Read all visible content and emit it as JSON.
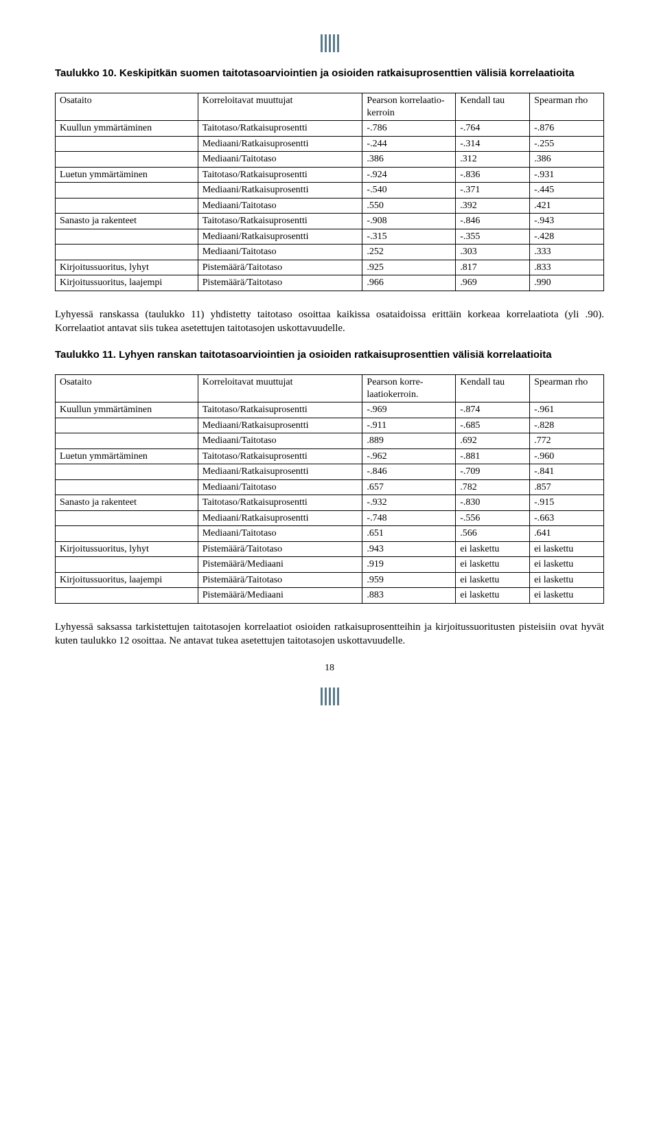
{
  "table10": {
    "title": "Taulukko 10. Keskipitkän suomen taitotasoarviointien ja osioiden ratkaisuprosenttien välisiä korrelaatioita",
    "headers": [
      "Osataito",
      "Korreloitavat muuttujat",
      "Pearson korrelaatio-kerroin",
      "Kendall tau",
      "Spearman rho"
    ],
    "rows": [
      [
        "Kuullun ymmärtäminen",
        "Taitotaso/Ratkaisuprosentti",
        "-.786",
        "-.764",
        "-.876"
      ],
      [
        "",
        "Mediaani/Ratkaisuprosentti",
        "-.244",
        "-.314",
        "-.255"
      ],
      [
        "",
        "Mediaani/Taitotaso",
        ".386",
        ".312",
        ".386"
      ],
      [
        "Luetun ymmärtäminen",
        "Taitotaso/Ratkaisuprosentti",
        "-.924",
        "-.836",
        "-.931"
      ],
      [
        "",
        "Mediaani/Ratkaisuprosentti",
        "-.540",
        "-.371",
        "-.445"
      ],
      [
        "",
        "Mediaani/Taitotaso",
        ".550",
        ".392",
        ".421"
      ],
      [
        "Sanasto ja rakenteet",
        "Taitotaso/Ratkaisuprosentti",
        "-.908",
        "-.846",
        "-.943"
      ],
      [
        "",
        "Mediaani/Ratkaisuprosentti",
        "-.315",
        "-.355",
        "-.428"
      ],
      [
        "",
        "Mediaani/Taitotaso",
        ".252",
        ".303",
        ".333"
      ],
      [
        "Kirjoitussuoritus, lyhyt",
        "Pistemäärä/Taitotaso",
        ".925",
        ".817",
        ".833"
      ],
      [
        "Kirjoitussuoritus, laajempi",
        "Pistemäärä/Taitotaso",
        ".966",
        ".969",
        ".990"
      ]
    ]
  },
  "para1": "Lyhyessä ranskassa (taulukko 11) yhdistetty taitotaso osoittaa kaikissa osataidoissa erittäin korkeaa korrelaatiota (yli .90). Korrelaatiot antavat siis tukea asetettujen taitotasojen uskottavuudelle.",
  "table11": {
    "title": "Taulukko 11. Lyhyen ranskan taitotasoarviointien ja osioiden ratkaisuprosenttien välisiä korrelaatioita",
    "headers": [
      "Osataito",
      "Korreloitavat muuttujat",
      "Pearson korre-laatiokerroin.",
      "Kendall tau",
      "Spearman rho"
    ],
    "rows": [
      [
        "Kuullun ymmärtäminen",
        "Taitotaso/Ratkaisuprosentti",
        "-.969",
        "-.874",
        "-.961"
      ],
      [
        "",
        "Mediaani/Ratkaisuprosentti",
        "-.911",
        "-.685",
        "-.828"
      ],
      [
        "",
        "Mediaani/Taitotaso",
        ".889",
        ".692",
        ".772"
      ],
      [
        "Luetun ymmärtäminen",
        "Taitotaso/Ratkaisuprosentti",
        "-.962",
        "-.881",
        "-.960"
      ],
      [
        "",
        "Mediaani/Ratkaisuprosentti",
        "-.846",
        "-.709",
        "-.841"
      ],
      [
        "",
        "Mediaani/Taitotaso",
        ".657",
        ".782",
        ".857"
      ],
      [
        "Sanasto ja rakenteet",
        "Taitotaso/Ratkaisuprosentti",
        "-.932",
        "-.830",
        "-.915"
      ],
      [
        "",
        "Mediaani/Ratkaisuprosentti",
        "-.748",
        "-.556",
        "-.663"
      ],
      [
        "",
        "Mediaani/Taitotaso",
        ".651",
        ".566",
        ".641"
      ],
      [
        "Kirjoitussuoritus, lyhyt",
        "Pistemäärä/Taitotaso",
        ".943",
        "ei laskettu",
        "ei laskettu"
      ],
      [
        "",
        "Pistemäärä/Mediaani",
        ".919",
        "ei laskettu",
        "ei laskettu"
      ],
      [
        "Kirjoitussuoritus, laajempi",
        "Pistemäärä/Taitotaso",
        ".959",
        "ei laskettu",
        "ei laskettu"
      ],
      [
        "",
        "Pistemäärä/Mediaani",
        ".883",
        "ei laskettu",
        "ei laskettu"
      ]
    ]
  },
  "para2": "Lyhyessä saksassa tarkistettujen taitotasojen  korrelaatiot osioiden ratkaisuprosentteihin ja kirjoitussuoritusten pisteisiin ovat hyvät kuten taulukko 12 osoittaa. Ne antavat tukea asetettujen taitotasojen uskottavuudelle.",
  "pagenum": "18"
}
